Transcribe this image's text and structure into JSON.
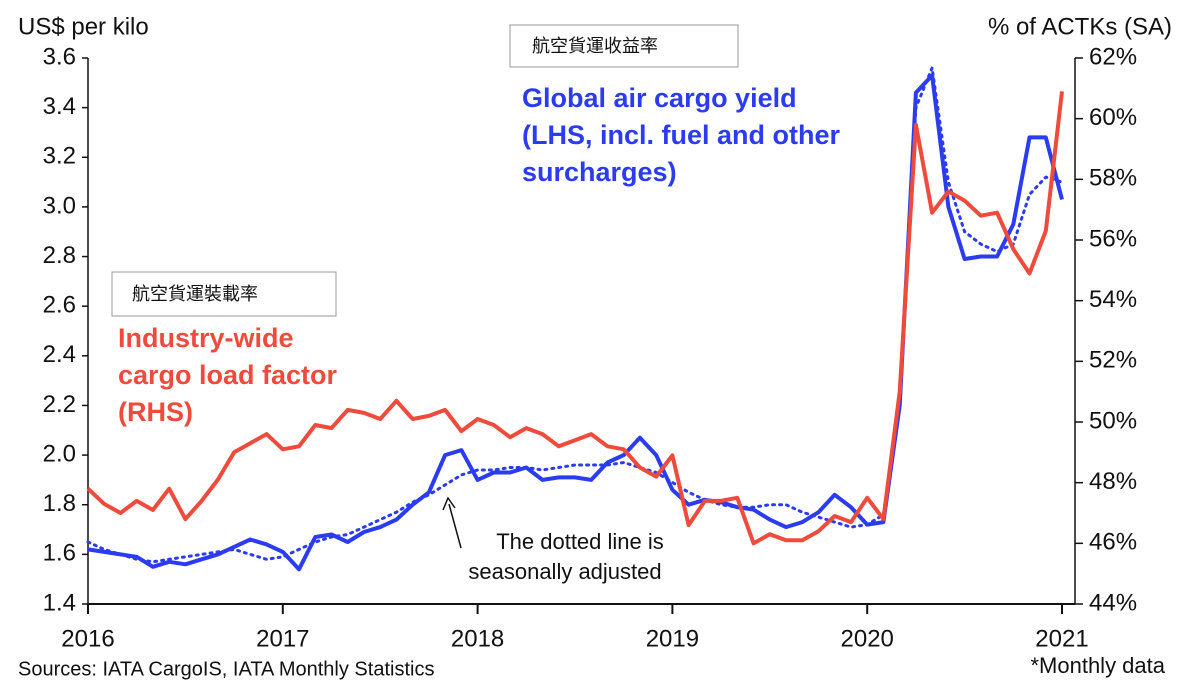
{
  "chart_data": {
    "type": "line",
    "title": "US$ per kilo",
    "y2_title": "% of ACTKs (SA)",
    "categories": [
      "2016",
      null,
      null,
      null,
      null,
      null,
      null,
      null,
      null,
      null,
      null,
      null,
      "2017",
      null,
      null,
      null,
      null,
      null,
      null,
      null,
      null,
      null,
      null,
      null,
      "2018",
      null,
      null,
      null,
      null,
      null,
      null,
      null,
      null,
      null,
      null,
      null,
      "2019",
      null,
      null,
      null,
      null,
      null,
      null,
      null,
      null,
      null,
      null,
      null,
      "2020",
      null,
      null,
      null,
      null,
      null,
      null,
      null,
      null,
      null,
      null,
      null,
      "2021"
    ],
    "ylim": [
      1.4,
      3.6
    ],
    "yticks": [
      1.4,
      1.6,
      1.8,
      {
        "value": 2,
        "label": "2.0"
      },
      2.2,
      2.4,
      2.6,
      2.8,
      {
        "value": 3,
        "label": "3.0"
      },
      3.2,
      3.4,
      3.6
    ],
    "y2lim": [
      44,
      62
    ],
    "y2ticks": [
      {
        "value": 44,
        "label": "44%"
      },
      {
        "value": 46,
        "label": "46%"
      },
      {
        "value": 48,
        "label": "48%"
      },
      {
        "value": 50,
        "label": "50%"
      },
      {
        "value": 52,
        "label": "52%"
      },
      {
        "value": 54,
        "label": "54%"
      },
      {
        "value": 56,
        "label": "56%"
      },
      {
        "value": 58,
        "label": "58%"
      },
      {
        "value": 60,
        "label": "60%"
      },
      {
        "value": 62,
        "label": "62%"
      }
    ],
    "series": [
      {
        "name": [
          "Global air cargo yield",
          "(LHS, incl. fuel and other",
          "surcharges)"
        ],
        "color": "#2b3cf0",
        "style": "solid",
        "values": [
          1.62,
          1.61,
          1.6,
          1.59,
          1.55,
          1.57,
          1.56,
          1.58,
          1.6,
          1.63,
          1.66,
          1.64,
          1.61,
          1.54,
          1.67,
          1.68,
          1.65,
          1.69,
          1.71,
          1.74,
          1.8,
          1.85,
          2.0,
          2.02,
          1.9,
          1.93,
          1.93,
          1.95,
          1.9,
          1.91,
          1.91,
          1.9,
          1.97,
          2.0,
          2.07,
          2.0,
          1.86,
          1.8,
          1.82,
          1.81,
          1.79,
          1.78,
          1.74,
          1.71,
          1.73,
          1.77,
          1.84,
          1.79,
          1.72,
          1.73,
          2.2,
          3.46,
          3.53,
          3.0,
          2.79,
          2.8,
          2.8,
          2.93,
          3.28,
          3.28,
          3.03
        ]
      },
      {
        "color": "#2b3cf0",
        "style": "dotted",
        "values": [
          1.65,
          1.62,
          1.6,
          1.58,
          1.57,
          1.58,
          1.59,
          1.6,
          1.61,
          1.62,
          1.6,
          1.58,
          1.59,
          1.62,
          1.65,
          1.67,
          1.68,
          1.71,
          1.74,
          1.77,
          1.81,
          1.84,
          1.88,
          1.92,
          1.94,
          1.94,
          1.95,
          1.95,
          1.94,
          1.95,
          1.96,
          1.96,
          1.96,
          1.97,
          1.95,
          1.93,
          1.89,
          1.85,
          1.82,
          1.8,
          1.79,
          1.79,
          1.8,
          1.8,
          1.77,
          1.75,
          1.73,
          1.71,
          1.72,
          1.76,
          2.25,
          3.4,
          3.56,
          3.1,
          2.9,
          2.85,
          2.82,
          2.85,
          3.05,
          3.12,
          3.1
        ]
      },
      {
        "name": [
          "Industry-wide",
          "cargo load factor",
          "(RHS)"
        ],
        "color": "#ef4b3c",
        "style": "solid",
        "axis": "y2",
        "values": [
          47.8,
          47.3,
          47.0,
          47.4,
          47.1,
          47.8,
          46.8,
          47.4,
          48.1,
          49.0,
          49.3,
          49.6,
          49.1,
          49.2,
          49.9,
          49.8,
          50.4,
          50.3,
          50.1,
          50.7,
          50.1,
          50.2,
          50.4,
          49.7,
          50.1,
          49.9,
          49.5,
          49.8,
          49.6,
          49.2,
          49.4,
          49.6,
          49.2,
          49.1,
          48.5,
          48.2,
          48.9,
          46.6,
          47.4,
          47.4,
          47.5,
          46.0,
          46.3,
          46.1,
          46.1,
          46.4,
          46.9,
          46.7,
          47.5,
          46.8,
          51.0,
          59.8,
          56.9,
          57.6,
          57.3,
          56.8,
          56.9,
          55.7,
          54.9,
          56.3,
          60.9
        ]
      }
    ],
    "boxes": [
      "航空貨運收益率",
      "航空貨運裝載率"
    ],
    "annotation": [
      "The dotted line is",
      "seasonally adjusted"
    ],
    "source": "Sources: IATA CargoIS, IATA Monthly Statistics",
    "note": "*Monthly data"
  }
}
